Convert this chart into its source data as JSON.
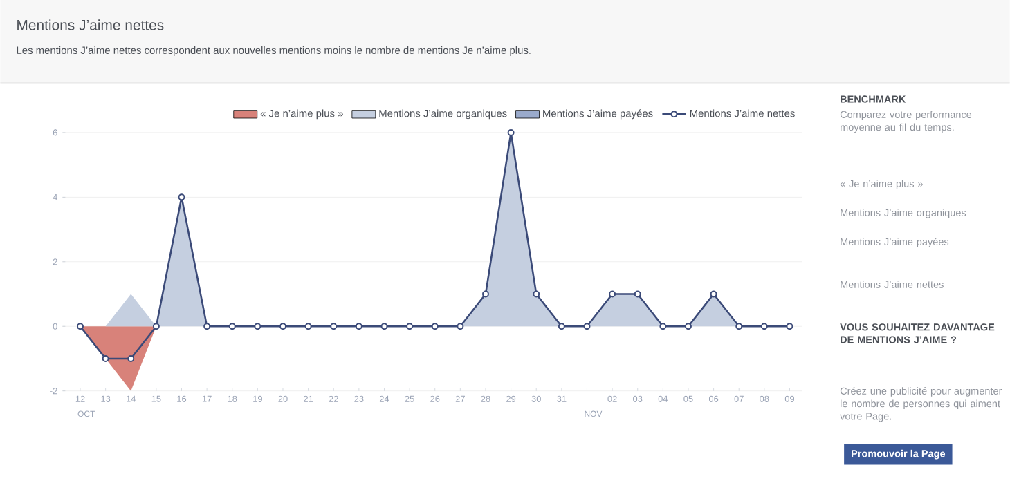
{
  "chart_data": {
    "type": "area",
    "title": "Mentions J’aime nettes",
    "subtitle": "Les mentions J’aime nettes correspondent aux nouvelles mentions moins le nombre de mentions Je n’aime plus.",
    "categories": [
      "12",
      "13",
      "14",
      "15",
      "16",
      "17",
      "18",
      "19",
      "20",
      "21",
      "22",
      "23",
      "24",
      "25",
      "26",
      "27",
      "28",
      "29",
      "30",
      "31",
      null,
      "02",
      "03",
      "04",
      "05",
      "06",
      "07",
      "08",
      "09"
    ],
    "series": [
      {
        "name": "« Je n’aime plus »",
        "color": "#d8827a",
        "values": [
          0,
          -1,
          -2,
          0,
          0,
          0,
          0,
          0,
          0,
          0,
          0,
          0,
          0,
          0,
          0,
          0,
          0,
          0,
          0,
          0,
          0,
          0,
          0,
          0,
          0,
          0,
          0,
          0,
          0
        ]
      },
      {
        "name": "Mentions J’aime organiques",
        "color": "#c5cfe0",
        "values": [
          0,
          0,
          1,
          0,
          4,
          0,
          0,
          0,
          0,
          0,
          0,
          0,
          0,
          0,
          0,
          0,
          1,
          6,
          1,
          0,
          0,
          1,
          1,
          0,
          0,
          1,
          0,
          0,
          0
        ]
      },
      {
        "name": "Mentions J’aime payées",
        "color": "#9aaacb",
        "values": [
          null,
          null,
          null,
          null,
          null,
          null,
          null,
          null,
          null,
          null,
          null,
          null,
          null,
          null,
          null,
          null,
          null,
          null,
          null,
          null,
          null,
          null,
          null,
          null,
          null,
          null,
          null,
          null,
          null
        ]
      },
      {
        "name": "Mentions J’aime nettes",
        "type": "line",
        "marker": "circle",
        "color": "#3b4a78",
        "values": [
          0,
          -1,
          -1,
          0,
          4,
          0,
          0,
          0,
          0,
          0,
          0,
          0,
          0,
          0,
          0,
          0,
          1,
          6,
          1,
          0,
          0,
          1,
          1,
          0,
          0,
          1,
          0,
          0,
          0
        ]
      }
    ],
    "ylim": [
      -2,
      6
    ],
    "yticks": [
      -2,
      0,
      2,
      4,
      6
    ],
    "grid": "y",
    "legend": "top right",
    "line_style": "solid",
    "annotations": [
      "OCT",
      "NOV",
      "BENCHMARK",
      "Comparez votre performance moyenne au fil du temps.",
      "« Je n’aime plus »",
      "Mentions J’aime organiques",
      "Mentions J’aime payées",
      "Mentions J’aime nettes",
      "VOUS SOUHAITEZ DAVANTAGE DE MENTIONS J’AIME ?",
      "Créez une publicité pour augmenter le nombre de personnes qui aiment votre Page.",
      "Promouvoir la Page"
    ]
  }
}
